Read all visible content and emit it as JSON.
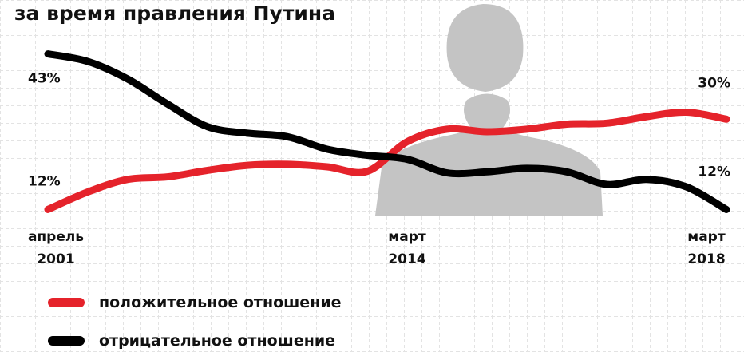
{
  "chart_data": {
    "type": "line",
    "title": "за время правления Путина",
    "categories": [
      "апрель 2001",
      null,
      null,
      null,
      null,
      null,
      null,
      null,
      null,
      "март 2014",
      null,
      null,
      null,
      null,
      null,
      null,
      null,
      "март 2018"
    ],
    "series": [
      {
        "name": "положительное отношение",
        "color": "#e5232b",
        "values": [
          12,
          15.5,
          18,
          18.5,
          19.8,
          20.8,
          21,
          20.5,
          19.6,
          25.5,
          28,
          27.5,
          28,
          29,
          29.2,
          30.5,
          31.4,
          30
        ],
        "value_labels": [
          "12%",
          null,
          null,
          null,
          null,
          null,
          null,
          null,
          null,
          null,
          null,
          null,
          null,
          null,
          null,
          null,
          null,
          "30%"
        ]
      },
      {
        "name": "отрицательное отношение",
        "color": "#000000",
        "values": [
          43,
          41.5,
          38,
          33,
          28.5,
          27.2,
          26.5,
          24,
          22.8,
          22,
          19.3,
          19.5,
          20.2,
          19.5,
          17,
          18,
          16.5,
          12
        ],
        "value_labels": [
          "43%",
          null,
          null,
          null,
          null,
          null,
          null,
          null,
          null,
          null,
          null,
          null,
          null,
          null,
          null,
          null,
          null,
          "12%"
        ]
      }
    ],
    "ylim": [
      10,
      45
    ]
  }
}
